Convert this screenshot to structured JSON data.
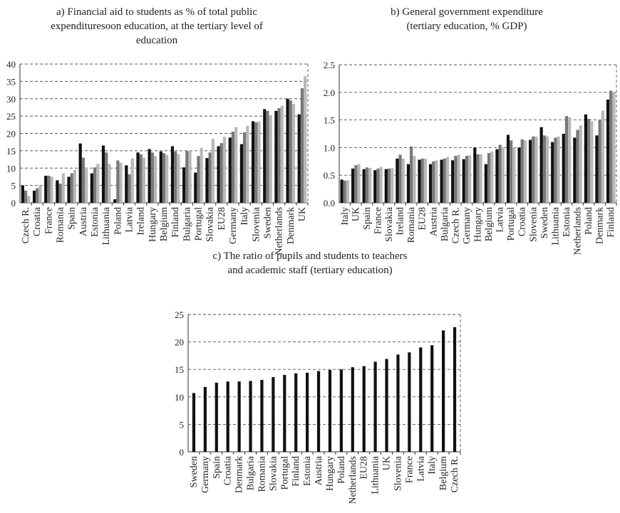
{
  "colors": {
    "s1": "#111111",
    "s2": "#777777",
    "s3": "#b8b8b8",
    "grid": "#555555"
  },
  "chart_data": [
    {
      "type": "bar",
      "title": "a) Financial aid to students as % of total public expendituresoon education, at the tertiary level of education",
      "title_lines": [
        "a) Financial aid to students as % of total public",
        "expendituresoon education, at the tertiary level of",
        "education"
      ],
      "categories": [
        "Czech R.",
        "Croatia",
        "France",
        "Romania",
        "Spain",
        "Austria",
        "Estonia",
        "Lithuania",
        "Poland",
        "Latvia",
        "Ireland",
        "Hungary",
        "Belgium",
        "Finland",
        "Bulgaria",
        "Portugal",
        "Slovakia",
        "EU28",
        "Germany",
        "Italy",
        "Slovenia",
        "Sweden",
        "Netherlands",
        "Denmark",
        "UK"
      ],
      "series": [
        {
          "values": [
            5,
            3.5,
            7.8,
            6.5,
            7.5,
            17.1,
            8.5,
            16.5,
            1,
            10.8,
            14.5,
            15.5,
            14.8,
            16.3,
            10.2,
            8.7,
            12.9,
            16.3,
            18.8,
            16.9,
            23.5,
            27,
            26.5,
            30,
            25.5
          ]
        },
        {
          "values": [
            3.5,
            4.2,
            7.8,
            5.5,
            8.5,
            13,
            10.2,
            14.5,
            12.2,
            8.2,
            14,
            14.5,
            14.3,
            14.8,
            14.9,
            13.5,
            14.5,
            17.2,
            20.5,
            20.3,
            23.2,
            26.5,
            27.3,
            29.5,
            33
          ]
        },
        {
          "values": [
            2,
            5,
            7.5,
            8.5,
            9.5,
            10.2,
            11.2,
            11.2,
            11.5,
            12.8,
            13,
            13.5,
            13.8,
            14,
            15,
            15.8,
            18.5,
            19,
            21.8,
            22.2,
            23.5,
            25,
            28,
            28.5,
            36.5
          ]
        }
      ],
      "ylim": [
        0,
        40
      ],
      "yticks": [
        "0",
        "5",
        "10",
        "15",
        "20",
        "25",
        "30",
        "35",
        "40"
      ],
      "grid": true
    },
    {
      "type": "bar",
      "title": "b) General government expenditure (tertiary education, % GDP)",
      "title_lines": [
        "b) General government expenditure",
        "(tertiary education, % GDP)"
      ],
      "categories": [
        "Italy",
        "UK",
        "Spain",
        "France",
        "Slovakia",
        "Ireland",
        "Romania",
        "EU28",
        "Austria",
        "Bulgaria",
        "Czech R.",
        "Germany",
        "Hungary",
        "Belgium",
        "Latvia",
        "Portugal",
        "Croatia",
        "Slovenia",
        "Sweden",
        "Lithuania",
        "Estonia",
        "Netherlands",
        "Poland",
        "Denmark",
        "Finland"
      ],
      "series": [
        {
          "values": [
            0.42,
            0.62,
            0.61,
            0.59,
            0.61,
            0.8,
            0.7,
            0.78,
            0.7,
            0.78,
            0.77,
            0.79,
            1.0,
            0.7,
            0.97,
            1.23,
            1.0,
            1.14,
            1.37,
            1.1,
            1.25,
            1.18,
            1.6,
            1.22,
            1.87
          ]
        },
        {
          "values": [
            0.4,
            0.68,
            0.64,
            0.62,
            0.62,
            0.87,
            1.02,
            0.8,
            0.75,
            0.8,
            0.85,
            0.85,
            0.88,
            0.9,
            1.05,
            1.13,
            1.15,
            1.2,
            1.22,
            1.18,
            1.57,
            1.32,
            1.52,
            1.5,
            2.03
          ]
        },
        {
          "values": [
            0.41,
            0.7,
            0.63,
            0.65,
            0.63,
            0.8,
            0.85,
            0.8,
            0.77,
            0.83,
            0.87,
            0.86,
            0.88,
            0.93,
            1.0,
            1.0,
            1.13,
            1.2,
            1.2,
            1.2,
            1.55,
            1.4,
            1.48,
            1.67,
            2.0
          ]
        }
      ],
      "ylim": [
        0,
        2.5
      ],
      "yticks": [
        "0.0",
        "0.5",
        "1.0",
        "1.5",
        "2.0",
        "2.5"
      ],
      "grid": true
    },
    {
      "type": "bar",
      "title": "c) The ratio of pupils and students to teachers and academic staff (tertiary education)",
      "title_lines": [
        "c) The ratio of pupils and students to teachers",
        "and academic staff (tertiary education)"
      ],
      "categories": [
        "Sweden",
        "Germany",
        "Spain",
        "Croatia",
        "Denmark",
        "Bulgaria",
        "Romania",
        "Slovakia",
        "Portugal",
        "Finland",
        "Estonia",
        "Austria",
        "Hungary",
        "Poland",
        "Netherlands",
        "EU28",
        "Lithuania",
        "UK",
        "Slovenia",
        "France",
        "Latvia",
        "Italy",
        "Belgium",
        "Czech R."
      ],
      "series": [
        {
          "values": [
            10.7,
            11.8,
            12.6,
            12.8,
            12.8,
            12.9,
            13.1,
            13.6,
            14.0,
            14.3,
            14.4,
            14.7,
            14.9,
            15.0,
            15.4,
            15.6,
            16.4,
            16.9,
            17.7,
            18.1,
            19.0,
            19.4,
            22.1,
            22.7
          ]
        }
      ],
      "ylim": [
        0,
        25
      ],
      "yticks": [
        "0",
        "5",
        "10",
        "15",
        "20",
        "25"
      ],
      "grid": true
    }
  ]
}
